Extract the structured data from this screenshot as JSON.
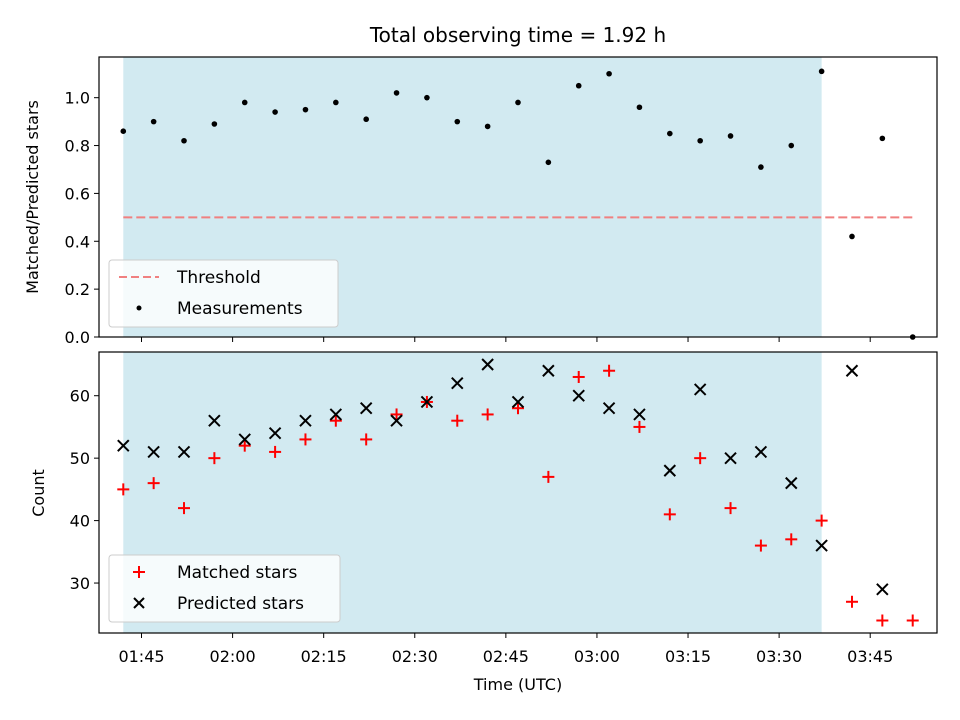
{
  "chart_data": [
    {
      "type": "scatter",
      "title": "Total observing time = 1.92 h",
      "xlabel": "",
      "ylabel": "Matched/Predicted stars",
      "x_unit": "time (UTC, HH:MM)",
      "xlim": [
        "01:38",
        "03:56"
      ],
      "ylim": [
        0,
        1.17
      ],
      "yticks": [
        "0.0",
        "0.2",
        "0.4",
        "0.6",
        "0.8",
        "1.0"
      ],
      "observing_window": [
        "01:42",
        "03:37"
      ],
      "observing_window_color": "#add8e6",
      "threshold": {
        "name": "Threshold",
        "value": 0.5,
        "x_range": [
          "01:42",
          "03:52"
        ],
        "color": "#f08080",
        "style": "dashed"
      },
      "series": [
        {
          "name": "Measurements",
          "color": "#000000",
          "marker": "dot",
          "points": [
            {
              "x": "01:42",
              "y": 0.86
            },
            {
              "x": "01:47",
              "y": 0.9
            },
            {
              "x": "01:52",
              "y": 0.82
            },
            {
              "x": "01:57",
              "y": 0.89
            },
            {
              "x": "02:02",
              "y": 0.98
            },
            {
              "x": "02:07",
              "y": 0.94
            },
            {
              "x": "02:12",
              "y": 0.95
            },
            {
              "x": "02:17",
              "y": 0.98
            },
            {
              "x": "02:22",
              "y": 0.91
            },
            {
              "x": "02:27",
              "y": 1.02
            },
            {
              "x": "02:32",
              "y": 1.0
            },
            {
              "x": "02:37",
              "y": 0.9
            },
            {
              "x": "02:42",
              "y": 0.88
            },
            {
              "x": "02:47",
              "y": 0.98
            },
            {
              "x": "02:52",
              "y": 0.73
            },
            {
              "x": "02:57",
              "y": 1.05
            },
            {
              "x": "03:02",
              "y": 1.1
            },
            {
              "x": "03:07",
              "y": 0.96
            },
            {
              "x": "03:12",
              "y": 0.85
            },
            {
              "x": "03:17",
              "y": 0.82
            },
            {
              "x": "03:22",
              "y": 0.84
            },
            {
              "x": "03:27",
              "y": 0.71
            },
            {
              "x": "03:32",
              "y": 0.8
            },
            {
              "x": "03:37",
              "y": 1.11
            },
            {
              "x": "03:42",
              "y": 0.42
            },
            {
              "x": "03:47",
              "y": 0.83
            },
            {
              "x": "03:52",
              "y": 0.0
            }
          ]
        }
      ],
      "legend": {
        "placement": "lower-left",
        "entries": [
          "Threshold",
          "Measurements"
        ]
      }
    },
    {
      "type": "scatter",
      "title": "",
      "xlabel": "Time (UTC)",
      "ylabel": "Count",
      "x_unit": "time (UTC, HH:MM)",
      "xlim": [
        "01:38",
        "03:56"
      ],
      "ylim": [
        22,
        67
      ],
      "yticks": [
        "30",
        "40",
        "50",
        "60"
      ],
      "xticks": [
        "01:45",
        "02:00",
        "02:15",
        "02:30",
        "02:45",
        "03:00",
        "03:15",
        "03:30",
        "03:45"
      ],
      "observing_window": [
        "01:42",
        "03:37"
      ],
      "observing_window_color": "#add8e6",
      "series": [
        {
          "name": "Matched stars",
          "color": "#ff0000",
          "marker": "plus",
          "points": [
            {
              "x": "01:42",
              "y": 45
            },
            {
              "x": "01:47",
              "y": 46
            },
            {
              "x": "01:52",
              "y": 42
            },
            {
              "x": "01:57",
              "y": 50
            },
            {
              "x": "02:02",
              "y": 52
            },
            {
              "x": "02:07",
              "y": 51
            },
            {
              "x": "02:12",
              "y": 53
            },
            {
              "x": "02:17",
              "y": 56
            },
            {
              "x": "02:22",
              "y": 53
            },
            {
              "x": "02:27",
              "y": 57
            },
            {
              "x": "02:32",
              "y": 59
            },
            {
              "x": "02:37",
              "y": 56
            },
            {
              "x": "02:42",
              "y": 57
            },
            {
              "x": "02:47",
              "y": 58
            },
            {
              "x": "02:52",
              "y": 47
            },
            {
              "x": "02:57",
              "y": 63
            },
            {
              "x": "03:02",
              "y": 64
            },
            {
              "x": "03:07",
              "y": 55
            },
            {
              "x": "03:12",
              "y": 41
            },
            {
              "x": "03:17",
              "y": 50
            },
            {
              "x": "03:22",
              "y": 42
            },
            {
              "x": "03:27",
              "y": 36
            },
            {
              "x": "03:32",
              "y": 37
            },
            {
              "x": "03:37",
              "y": 40
            },
            {
              "x": "03:42",
              "y": 27
            },
            {
              "x": "03:47",
              "y": 24
            },
            {
              "x": "03:52",
              "y": 24
            }
          ]
        },
        {
          "name": "Predicted stars",
          "color": "#000000",
          "marker": "cross",
          "points": [
            {
              "x": "01:42",
              "y": 52
            },
            {
              "x": "01:47",
              "y": 51
            },
            {
              "x": "01:52",
              "y": 51
            },
            {
              "x": "01:57",
              "y": 56
            },
            {
              "x": "02:02",
              "y": 53
            },
            {
              "x": "02:07",
              "y": 54
            },
            {
              "x": "02:12",
              "y": 56
            },
            {
              "x": "02:17",
              "y": 57
            },
            {
              "x": "02:22",
              "y": 58
            },
            {
              "x": "02:27",
              "y": 56
            },
            {
              "x": "02:32",
              "y": 59
            },
            {
              "x": "02:37",
              "y": 62
            },
            {
              "x": "02:42",
              "y": 65
            },
            {
              "x": "02:47",
              "y": 59
            },
            {
              "x": "02:52",
              "y": 64
            },
            {
              "x": "02:57",
              "y": 60
            },
            {
              "x": "03:02",
              "y": 58
            },
            {
              "x": "03:07",
              "y": 57
            },
            {
              "x": "03:12",
              "y": 48
            },
            {
              "x": "03:17",
              "y": 61
            },
            {
              "x": "03:22",
              "y": 50
            },
            {
              "x": "03:27",
              "y": 51
            },
            {
              "x": "03:32",
              "y": 46
            },
            {
              "x": "03:37",
              "y": 36
            },
            {
              "x": "03:42",
              "y": 64
            },
            {
              "x": "03:47",
              "y": 29
            }
          ]
        }
      ],
      "legend": {
        "placement": "lower-left",
        "entries": [
          "Matched stars",
          "Predicted stars"
        ]
      }
    }
  ]
}
